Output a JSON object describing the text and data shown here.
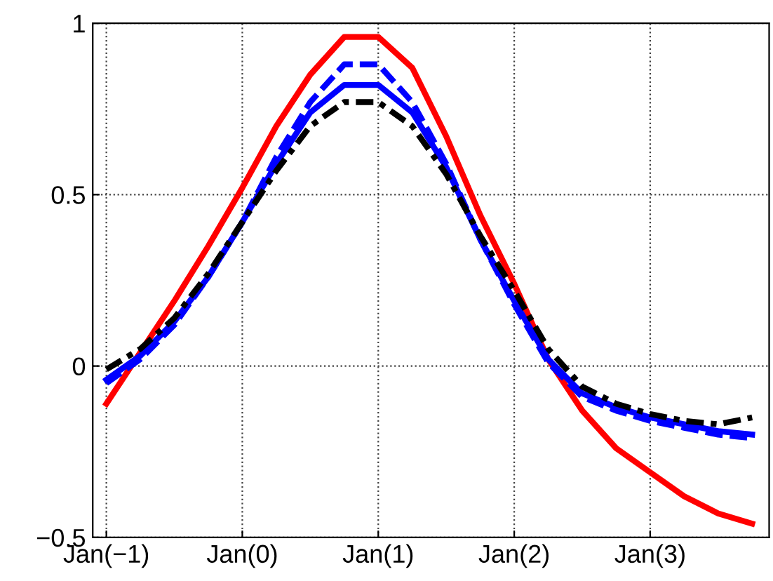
{
  "chart_data": {
    "type": "line",
    "grid": true,
    "legend": false,
    "categories": [
      "Jan(−1)",
      null,
      null,
      null,
      "Jan(0)",
      null,
      null,
      null,
      "Jan(1)",
      null,
      null,
      null,
      "Jan(2)",
      null,
      null,
      null,
      "Jan(3)",
      null,
      null,
      null
    ],
    "ylim": [
      -0.5,
      1
    ],
    "yticks": [
      {
        "value": -0.5,
        "label": "−0.5"
      },
      0,
      0.5,
      1
    ],
    "series": [
      {
        "color": "#ff0000",
        "line_style": "solid",
        "values": [
          -0.11,
          0.04,
          0.19,
          0.35,
          0.52,
          0.7,
          0.85,
          0.96,
          0.96,
          0.87,
          0.67,
          0.44,
          0.24,
          0.02,
          -0.13,
          -0.24,
          -0.31,
          -0.38,
          -0.43,
          -0.46
        ]
      },
      {
        "color": "#0000ff",
        "line_style": "solid",
        "values": [
          -0.04,
          0.03,
          0.13,
          0.26,
          0.42,
          0.59,
          0.74,
          0.82,
          0.82,
          0.74,
          0.58,
          0.37,
          0.19,
          0.02,
          -0.08,
          -0.12,
          -0.15,
          -0.17,
          -0.19,
          -0.2
        ]
      },
      {
        "color": "#0000ff",
        "line_style": "dashed",
        "values": [
          -0.05,
          0.02,
          0.12,
          0.26,
          0.42,
          0.61,
          0.77,
          0.88,
          0.88,
          0.77,
          0.59,
          0.37,
          0.18,
          0.01,
          -0.09,
          -0.13,
          -0.16,
          -0.18,
          -0.2,
          -0.21
        ]
      },
      {
        "color": "#000000",
        "line_style": "dashdot",
        "values": [
          -0.01,
          0.05,
          0.14,
          0.27,
          0.42,
          0.57,
          0.7,
          0.77,
          0.77,
          0.7,
          0.56,
          0.38,
          0.22,
          0.05,
          -0.06,
          -0.11,
          -0.14,
          -0.16,
          -0.17,
          -0.15
        ]
      }
    ]
  }
}
